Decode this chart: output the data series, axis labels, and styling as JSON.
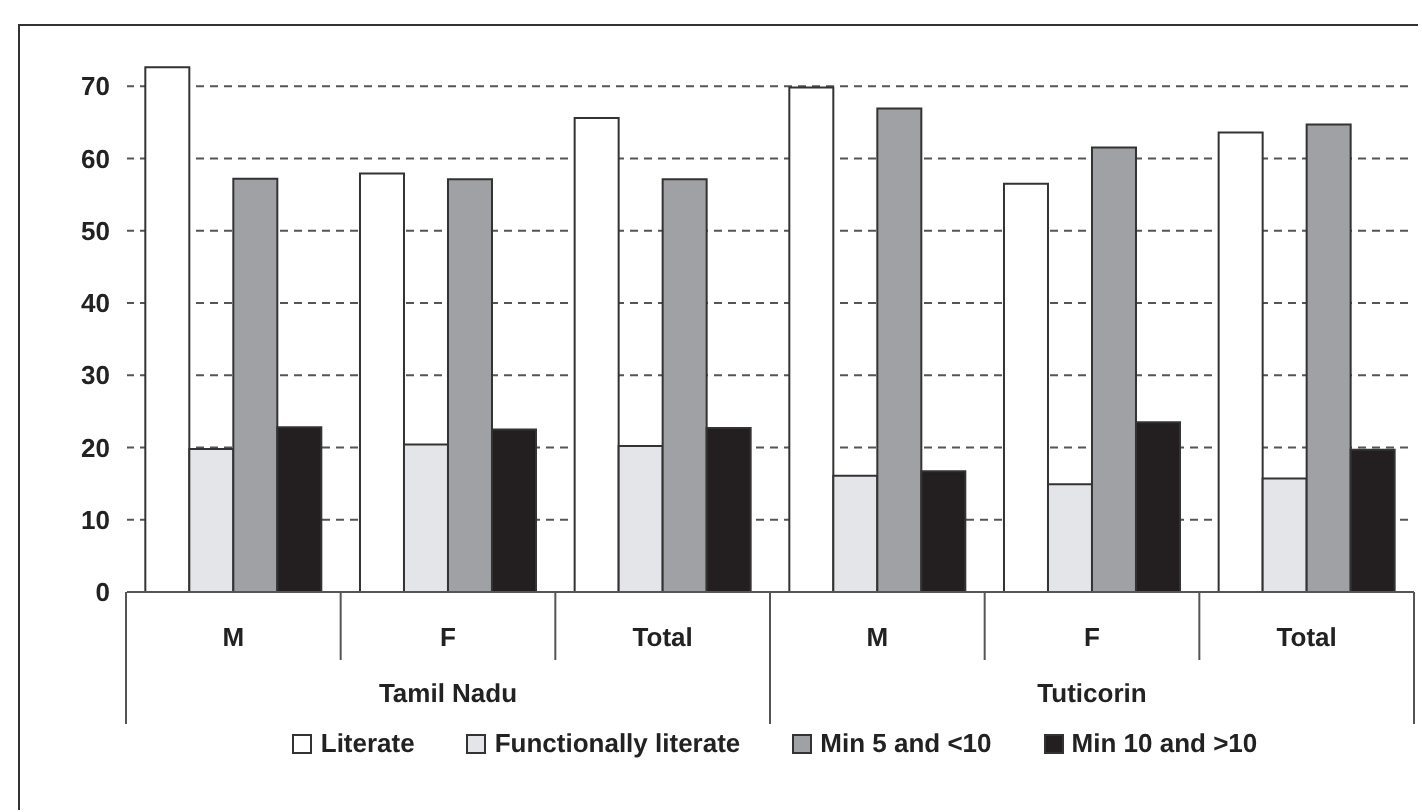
{
  "chart_data": {
    "type": "bar",
    "categories": [
      "M",
      "F",
      "Total",
      "M",
      "F",
      "Total"
    ],
    "annotations": [
      "Tamil Nadu",
      "Tuticorin"
    ],
    "series": [
      {
        "name": "Literate",
        "color": "#ffffff",
        "values": [
          72.6,
          57.9,
          65.6,
          69.8,
          56.5,
          63.6
        ]
      },
      {
        "name": "Functionally literate",
        "color": "#e4e5e8",
        "values": [
          19.8,
          20.4,
          20.2,
          16.1,
          14.9,
          15.7
        ]
      },
      {
        "name": "Min 5 and <10",
        "color": "#a0a1a4",
        "values": [
          57.2,
          57.1,
          57.1,
          66.9,
          61.5,
          64.7
        ]
      },
      {
        "name": "Min 10 and >10",
        "color": "#231f20",
        "values": [
          22.8,
          22.5,
          22.7,
          16.7,
          23.5,
          19.7
        ]
      }
    ],
    "ylim": [
      0,
      75
    ],
    "yticks": [
      0,
      10,
      20,
      30,
      40,
      50,
      60,
      70
    ],
    "grid": "y",
    "legend": "bottom"
  }
}
